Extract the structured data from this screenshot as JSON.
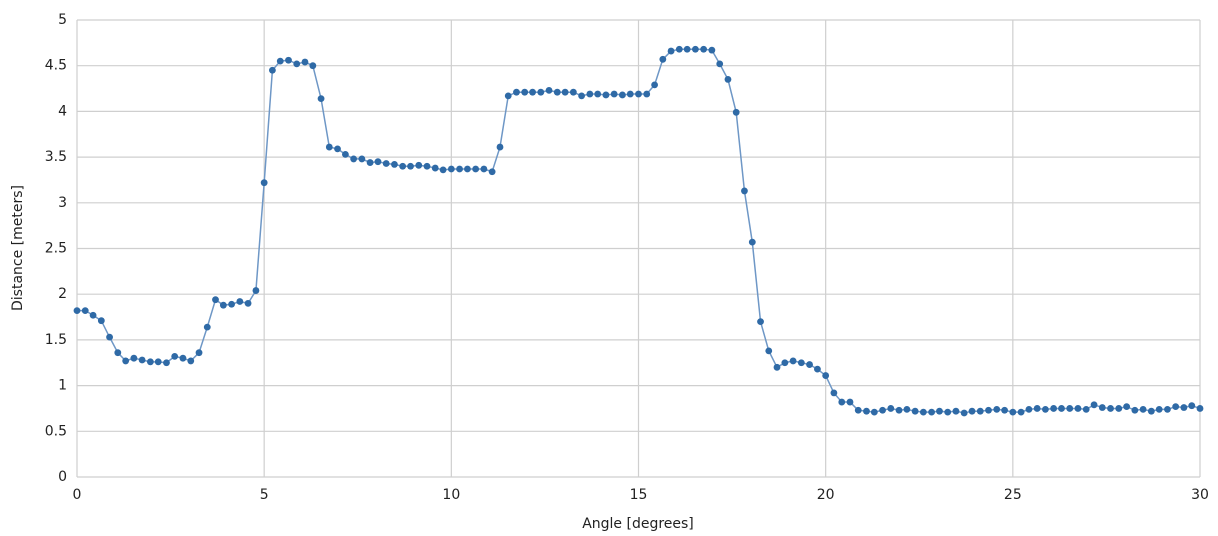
{
  "chart_data": {
    "type": "line",
    "xlabel": "Angle [degrees]",
    "ylabel": "Distance [meters]",
    "xlim": [
      0,
      30
    ],
    "xticks": [
      0,
      5,
      10,
      15,
      20,
      25,
      30
    ],
    "ylim": [
      0,
      5
    ],
    "yticks": [
      0,
      0.5,
      1,
      1.5,
      2,
      2.5,
      3,
      3.5,
      4,
      4.5,
      5
    ],
    "grid": true,
    "x": [
      0,
      0.22,
      0.43,
      0.65,
      0.87,
      1.09,
      1.3,
      1.52,
      1.74,
      1.96,
      2.17,
      2.39,
      2.61,
      2.83,
      3.04,
      3.26,
      3.48,
      3.7,
      3.91,
      4.13,
      4.35,
      4.57,
      4.78,
      5,
      5.22,
      5.43,
      5.65,
      5.87,
      6.09,
      6.3,
      6.52,
      6.74,
      6.96,
      7.17,
      7.39,
      7.61,
      7.83,
      8.04,
      8.26,
      8.48,
      8.7,
      8.91,
      9.13,
      9.35,
      9.57,
      9.78,
      10,
      10.22,
      10.43,
      10.65,
      10.87,
      11.09,
      11.3,
      11.52,
      11.74,
      11.96,
      12.17,
      12.39,
      12.61,
      12.83,
      13.04,
      13.26,
      13.48,
      13.7,
      13.91,
      14.13,
      14.35,
      14.57,
      14.78,
      15,
      15.22,
      15.43,
      15.65,
      15.87,
      16.09,
      16.3,
      16.52,
      16.74,
      16.96,
      17.17,
      17.39,
      17.61,
      17.83,
      18.04,
      18.26,
      18.48,
      18.7,
      18.91,
      19.13,
      19.35,
      19.57,
      19.78,
      20,
      20.22,
      20.43,
      20.65,
      20.87,
      21.09,
      21.3,
      21.52,
      21.74,
      21.96,
      22.17,
      22.39,
      22.61,
      22.83,
      23.04,
      23.26,
      23.48,
      23.7,
      23.91,
      24.13,
      24.35,
      24.57,
      24.78,
      25,
      25.22,
      25.43,
      25.65,
      25.87,
      26.09,
      26.3,
      26.52,
      26.74,
      26.96,
      27.17,
      27.39,
      27.61,
      27.83,
      28.04,
      28.26,
      28.48,
      28.7,
      28.91,
      29.13,
      29.35,
      29.57,
      29.78,
      30
    ],
    "series": [
      {
        "color": "#2f6aa6",
        "values": [
          1.82,
          1.82,
          1.77,
          1.71,
          1.53,
          1.36,
          1.27,
          1.3,
          1.28,
          1.26,
          1.26,
          1.25,
          1.32,
          1.3,
          1.27,
          1.36,
          1.64,
          1.94,
          1.88,
          1.89,
          1.92,
          1.9,
          2.04,
          3.22,
          4.45,
          4.55,
          4.56,
          4.52,
          4.54,
          4.5,
          4.14,
          3.61,
          3.59,
          3.53,
          3.48,
          3.48,
          3.44,
          3.45,
          3.43,
          3.42,
          3.4,
          3.4,
          3.41,
          3.4,
          3.38,
          3.36,
          3.37,
          3.37,
          3.37,
          3.37,
          3.37,
          3.34,
          3.61,
          4.17,
          4.21,
          4.21,
          4.21,
          4.21,
          4.23,
          4.21,
          4.21,
          4.21,
          4.17,
          4.19,
          4.19,
          4.18,
          4.19,
          4.18,
          4.19,
          4.19,
          4.19,
          4.29,
          4.57,
          4.66,
          4.68,
          4.68,
          4.68,
          4.68,
          4.67,
          4.52,
          4.35,
          3.99,
          3.13,
          2.57,
          1.7,
          1.38,
          1.2,
          1.25,
          1.27,
          1.25,
          1.23,
          1.18,
          1.11,
          0.92,
          0.82,
          0.82,
          0.73,
          0.72,
          0.71,
          0.73,
          0.75,
          0.73,
          0.74,
          0.72,
          0.71,
          0.71,
          0.72,
          0.71,
          0.72,
          0.7,
          0.72,
          0.72,
          0.73,
          0.74,
          0.73,
          0.71,
          0.71,
          0.74,
          0.75,
          0.74,
          0.75,
          0.75,
          0.75,
          0.75,
          0.74,
          0.79,
          0.76,
          0.75,
          0.75,
          0.77,
          0.73,
          0.74,
          0.72,
          0.74,
          0.74,
          0.77,
          0.76,
          0.78,
          0.75
        ]
      }
    ]
  }
}
